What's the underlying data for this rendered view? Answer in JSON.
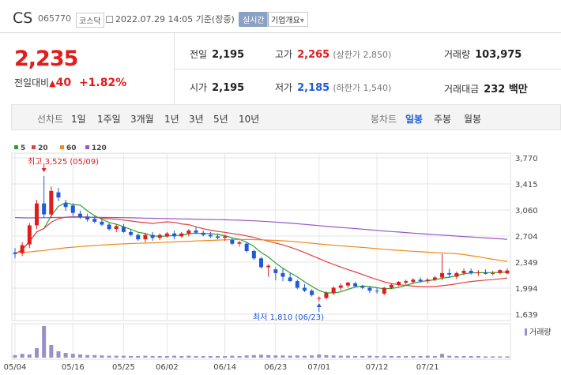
{
  "header": {
    "name": "CS",
    "code": "065770",
    "market": "코스닥",
    "datetime": "2022.07.29 14:05",
    "basis": "기준(장중)",
    "realtime": "실시간",
    "overview": "기업개요",
    "overview_arrow": "▾"
  },
  "quote": {
    "price": "2,235",
    "change_label": "전일대비",
    "change_arrow": "▲",
    "change": "40",
    "change_pct": "+1.82%"
  },
  "stats": {
    "prev_label": "전일",
    "prev": "2,195",
    "high_label": "고가",
    "high": "2,265",
    "upper_limit": "(상한가 2,850)",
    "volume_label": "거래량",
    "volume": "103,975",
    "open_label": "시가",
    "open": "2,195",
    "low_label": "저가",
    "low": "2,185",
    "lower_limit": "(하한가 1,540)",
    "amount_label": "거래대금",
    "amount": "232 백만"
  },
  "period_bar": {
    "line_label": "선차트",
    "periods": [
      "1일",
      "1주일",
      "3개월",
      "1년",
      "3년",
      "5년",
      "10년"
    ],
    "candle_label": "봉차트",
    "candle_periods": [
      "일봉",
      "주봉",
      "월봉"
    ],
    "selected_candle": "일봉"
  },
  "legend": [
    {
      "name": "5",
      "color": "#2f9e2f"
    },
    {
      "name": "20",
      "color": "#e04040"
    },
    {
      "name": "60",
      "color": "#f08a1c"
    },
    {
      "name": "120",
      "color": "#9a55c8"
    }
  ],
  "colors": {
    "up": "#e01d1d",
    "down": "#1f5bd8",
    "grid": "#e6e6e6"
  },
  "chart_data": {
    "type": "candlestick",
    "yticks": [
      "3,770",
      "3,415",
      "3,060",
      "2,704",
      "2,349",
      "1,994",
      "1,639"
    ],
    "ylim": [
      1639,
      3770
    ],
    "x_labels": [
      "05/04",
      "05/16",
      "05/25",
      "06/02",
      "06/14",
      "06/23",
      "07/01",
      "07/12",
      "07/21"
    ],
    "high_annotation": "최고 3,525 (05/09)",
    "low_annotation": "최저 1,810 (06/23)",
    "volume_label": "거래량",
    "candles": [
      [
        2480,
        2540,
        2400,
        2460
      ],
      [
        2470,
        2620,
        2430,
        2580
      ],
      [
        2590,
        2880,
        2540,
        2850
      ],
      [
        2850,
        3200,
        2800,
        3150
      ],
      [
        3150,
        3525,
        2950,
        3000
      ],
      [
        3000,
        3380,
        2950,
        3320
      ],
      [
        3300,
        3360,
        3180,
        3230
      ],
      [
        3150,
        3200,
        3050,
        3100
      ],
      [
        3120,
        3150,
        2980,
        3020
      ],
      [
        3010,
        3050,
        2940,
        2960
      ],
      [
        2970,
        3010,
        2900,
        2930
      ],
      [
        2940,
        2980,
        2880,
        2900
      ],
      [
        2900,
        2950,
        2840,
        2860
      ],
      [
        2860,
        2880,
        2780,
        2800
      ],
      [
        2800,
        2860,
        2760,
        2840
      ],
      [
        2830,
        2870,
        2750,
        2760
      ],
      [
        2760,
        2790,
        2700,
        2720
      ],
      [
        2720,
        2740,
        2640,
        2660
      ],
      [
        2660,
        2750,
        2620,
        2720
      ],
      [
        2720,
        2760,
        2640,
        2680
      ],
      [
        2680,
        2740,
        2650,
        2720
      ],
      [
        2700,
        2760,
        2680,
        2740
      ],
      [
        2740,
        2780,
        2660,
        2700
      ],
      [
        2700,
        2760,
        2680,
        2740
      ],
      [
        2740,
        2800,
        2700,
        2780
      ],
      [
        2780,
        2830,
        2740,
        2750
      ],
      [
        2750,
        2780,
        2700,
        2720
      ],
      [
        2720,
        2760,
        2680,
        2700
      ],
      [
        2700,
        2740,
        2660,
        2680
      ],
      [
        2680,
        2720,
        2640,
        2700
      ],
      [
        2650,
        2680,
        2580,
        2600
      ],
      [
        2600,
        2640,
        2560,
        2620
      ],
      [
        2600,
        2620,
        2480,
        2500
      ],
      [
        2500,
        2520,
        2380,
        2400
      ],
      [
        2400,
        2420,
        2260,
        2280
      ],
      [
        2280,
        2320,
        2150,
        2300
      ],
      [
        2250,
        2280,
        2100,
        2200
      ],
      [
        2200,
        2260,
        2090,
        2150
      ],
      [
        2140,
        2200,
        2080,
        2090
      ],
      [
        2090,
        2110,
        1980,
        2000
      ],
      [
        2000,
        2050,
        1940,
        1960
      ],
      [
        1960,
        1980,
        1880,
        1900
      ],
      [
        1850,
        1880,
        1810,
        1860
      ],
      [
        1860,
        1950,
        1840,
        1930
      ],
      [
        1930,
        2020,
        1900,
        2000
      ],
      [
        2000,
        2060,
        1960,
        2030
      ],
      [
        2030,
        2080,
        2000,
        2070
      ],
      [
        2060,
        2080,
        2010,
        2020
      ],
      [
        2020,
        2040,
        1980,
        2000
      ],
      [
        2000,
        2020,
        1930,
        1960
      ],
      [
        1960,
        2000,
        1920,
        1950
      ],
      [
        1920,
        2010,
        1900,
        2000
      ],
      [
        2000,
        2060,
        1980,
        2040
      ],
      [
        2040,
        2090,
        2020,
        2080
      ],
      [
        2070,
        2110,
        2040,
        2090
      ],
      [
        2080,
        2130,
        2050,
        2110
      ],
      [
        2110,
        2140,
        2070,
        2090
      ],
      [
        2090,
        2130,
        2060,
        2110
      ],
      [
        2110,
        2160,
        2090,
        2140
      ],
      [
        2140,
        2460,
        2100,
        2200
      ],
      [
        2200,
        2260,
        2140,
        2180
      ],
      [
        2150,
        2220,
        2120,
        2200
      ],
      [
        2200,
        2260,
        2170,
        2230
      ],
      [
        2230,
        2260,
        2180,
        2200
      ],
      [
        2200,
        2240,
        2160,
        2210
      ],
      [
        2210,
        2250,
        2180,
        2190
      ],
      [
        2190,
        2230,
        2170,
        2200
      ],
      [
        2200,
        2250,
        2180,
        2240
      ],
      [
        2195,
        2265,
        2185,
        2235
      ]
    ],
    "volumes": [
      8,
      12,
      10,
      30,
      100,
      40,
      20,
      15,
      12,
      10,
      8,
      8,
      7,
      6,
      6,
      6,
      5,
      5,
      6,
      5,
      5,
      5,
      6,
      5,
      6,
      5,
      5,
      5,
      5,
      5,
      6,
      5,
      7,
      8,
      9,
      8,
      7,
      7,
      6,
      7,
      6,
      7,
      10,
      8,
      7,
      6,
      6,
      5,
      5,
      6,
      5,
      6,
      5,
      5,
      5,
      5,
      5,
      6,
      5,
      12,
      6,
      5,
      5,
      5,
      5,
      4,
      4,
      4,
      4
    ]
  }
}
